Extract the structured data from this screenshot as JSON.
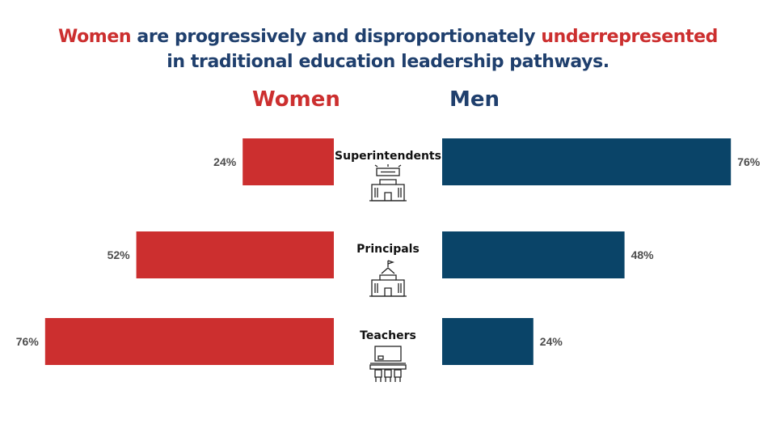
{
  "title": {
    "w1": "Women",
    "t1": " are progressively and disproportionately ",
    "w2": "underrepresented",
    "t2": "in traditional education leadership pathways."
  },
  "colors": {
    "women": "#cc2f2f",
    "men": "#0a4468",
    "title_blue": "#1f3f6d"
  },
  "chart_data": {
    "type": "bar",
    "orientation": "horizontal-diverging",
    "categories": [
      "Superintendents",
      "Principals",
      "Teachers"
    ],
    "category_icons": [
      "school-building-icon",
      "school-building-icon",
      "classroom-desk-icon"
    ],
    "series": [
      {
        "name": "Women",
        "values": [
          24,
          52,
          76
        ],
        "labels": [
          "24%",
          "52%",
          "76%"
        ]
      },
      {
        "name": "Men",
        "values": [
          76,
          48,
          24
        ],
        "labels": [
          "76%",
          "48%",
          "24%"
        ]
      }
    ],
    "xlim": [
      0,
      100
    ],
    "unit": "%",
    "grid": false
  }
}
